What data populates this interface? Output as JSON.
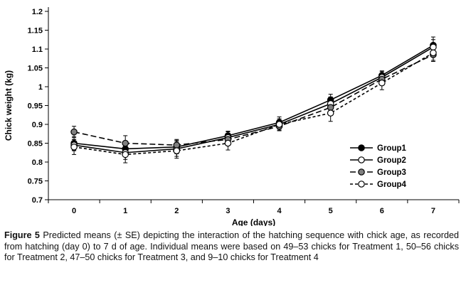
{
  "chart_data": {
    "type": "line",
    "title": "",
    "xlabel": "Age (days)",
    "ylabel": "Chick weight (kg)",
    "x": [
      0,
      1,
      2,
      3,
      4,
      5,
      6,
      7
    ],
    "ylim": [
      0.7,
      1.2
    ],
    "ytick_step": 0.05,
    "yticks": [
      "0.7",
      "0.75",
      "0.8",
      "0.85",
      "0.9",
      "0.95",
      "1",
      "1.05",
      "1.1",
      "1.15",
      "1.2"
    ],
    "grid": false,
    "legend_position": "bottom-right-inside",
    "series": [
      {
        "name": "Group1",
        "marker": "filled-circle",
        "line": "solid",
        "values": [
          0.85,
          0.835,
          0.84,
          0.87,
          0.905,
          0.965,
          1.03,
          1.11
        ],
        "errors": [
          0.018,
          0.02,
          0.018,
          0.012,
          0.015,
          0.015,
          0.012,
          0.022
        ]
      },
      {
        "name": "Group2",
        "marker": "open-circle",
        "line": "solid",
        "values": [
          0.845,
          0.825,
          0.835,
          0.865,
          0.9,
          0.955,
          1.025,
          1.105
        ],
        "errors": [
          0.015,
          0.018,
          0.02,
          0.015,
          0.012,
          0.018,
          0.015,
          0.02
        ]
      },
      {
        "name": "Group3",
        "marker": "gray-circle",
        "line": "dashed",
        "values": [
          0.88,
          0.85,
          0.845,
          0.86,
          0.895,
          0.945,
          1.02,
          1.085
        ],
        "errors": [
          0.015,
          0.02,
          0.015,
          0.012,
          0.012,
          0.02,
          0.012,
          0.018
        ]
      },
      {
        "name": "Group4",
        "marker": "open-circle",
        "line": "dash-short",
        "values": [
          0.84,
          0.82,
          0.83,
          0.85,
          0.9,
          0.93,
          1.01,
          1.09
        ],
        "errors": [
          0.02,
          0.022,
          0.02,
          0.018,
          0.015,
          0.022,
          0.018,
          0.02
        ]
      }
    ]
  },
  "caption": {
    "label": "Figure 5",
    "text": " Predicted means (± SE) depicting the interaction of the hatching sequence with chick age, as recorded from hatching (day 0) to 7 d of age. Individual means were based on 49–53 chicks for Treatment 1, 50–56 chicks for Treatment 2, 47–50 chicks for Treatment 3, and 9–10 chicks for Treatment 4"
  }
}
